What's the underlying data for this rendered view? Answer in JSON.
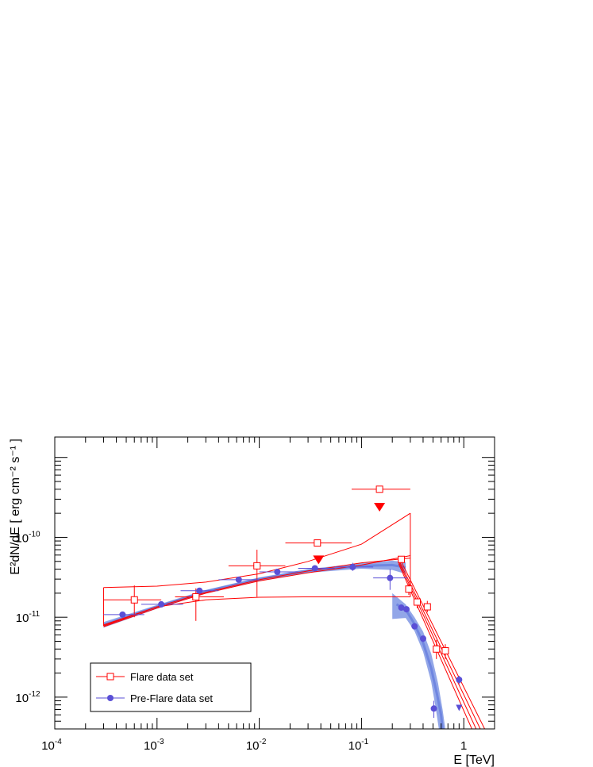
{
  "chart_data": {
    "type": "scatter",
    "title": "",
    "xlabel": "E [TeV]",
    "ylabel": "E²dN/dE [ erg cm⁻² s⁻¹ ]",
    "x_scale": "log",
    "y_scale": "log",
    "xlim": [
      0.0001,
      2.0
    ],
    "ylim": [
      4e-13,
      1.8e-09
    ],
    "x_ticks": [
      {
        "v": 0.0001,
        "base": "10",
        "exp": "-4"
      },
      {
        "v": 0.001,
        "base": "10",
        "exp": "-3"
      },
      {
        "v": 0.01,
        "base": "10",
        "exp": "-2"
      },
      {
        "v": 0.1,
        "base": "10",
        "exp": "-1"
      },
      {
        "v": 1,
        "base": "1",
        "exp": ""
      }
    ],
    "y_ticks": [
      {
        "v": 1e-12,
        "base": "10",
        "exp": "-12"
      },
      {
        "v": 1e-11,
        "base": "10",
        "exp": "-11"
      },
      {
        "v": 1e-10,
        "base": "10",
        "exp": "-10"
      }
    ],
    "grid": false,
    "legend_position": "bottom-left",
    "colors": {
      "flare": "#ff0000",
      "preflare": "#5a4fd6",
      "preflare_band": "#6d88e0",
      "preflare_curve": "#6f86e0"
    },
    "series": [
      {
        "name": "Flare data set",
        "marker": "open-square",
        "points": [
          {
            "x": 0.0006,
            "y": 1.65e-11,
            "xlo": 0.0003,
            "xhi": 0.0011,
            "ylo": 1e-11,
            "yhi": 2.5e-11
          },
          {
            "x": 0.0024,
            "y": 1.8e-11,
            "xlo": 0.0015,
            "xhi": 0.0045,
            "ylo": 9e-12,
            "yhi": 2.3e-11
          },
          {
            "x": 0.0095,
            "y": 4.4e-11,
            "xlo": 0.005,
            "xhi": 0.018,
            "ylo": 1.8e-11,
            "yhi": 7e-11
          },
          {
            "x": 0.037,
            "y": 8.5e-11,
            "xlo": 0.018,
            "xhi": 0.08,
            "ylo": null,
            "yhi": null
          },
          {
            "x": 0.15,
            "y": 4e-10,
            "xlo": 0.08,
            "xhi": 0.3,
            "ylo": null,
            "yhi": null
          },
          {
            "x": 0.245,
            "y": 5.3e-11,
            "xlo": null,
            "xhi": null,
            "ylo": 4.8e-11,
            "yhi": 5.8e-11
          },
          {
            "x": 0.29,
            "y": 2.25e-11,
            "xlo": null,
            "xhi": null,
            "ylo": 1.9e-11,
            "yhi": 2.6e-11
          },
          {
            "x": 0.35,
            "y": 1.55e-11,
            "xlo": null,
            "xhi": null,
            "ylo": 1.3e-11,
            "yhi": 1.8e-11
          },
          {
            "x": 0.44,
            "y": 1.35e-11,
            "xlo": null,
            "xhi": null,
            "ylo": 1.15e-11,
            "yhi": 1.6e-11
          },
          {
            "x": 0.54,
            "y": 4e-12,
            "xlo": null,
            "xhi": null,
            "ylo": 3e-12,
            "yhi": 5.2e-12
          },
          {
            "x": 0.66,
            "y": 3.8e-12,
            "xlo": null,
            "xhi": null,
            "ylo": 3e-12,
            "yhi": 4.6e-12
          }
        ],
        "upper_limits": [
          {
            "x": 0.038,
            "y": 4.6e-11
          },
          {
            "x": 0.15,
            "y": 2.1e-10
          }
        ]
      },
      {
        "name": "Pre-Flare data set",
        "marker": "filled-circle",
        "points": [
          {
            "x": 0.00046,
            "y": 1.08e-11,
            "xlo": 0.0003,
            "xhi": 0.00075,
            "ylo": null,
            "yhi": null
          },
          {
            "x": 0.0011,
            "y": 1.45e-11,
            "xlo": 0.0007,
            "xhi": 0.0018,
            "ylo": null,
            "yhi": null
          },
          {
            "x": 0.0026,
            "y": 2.15e-11,
            "xlo": 0.0017,
            "xhi": 0.004,
            "ylo": null,
            "yhi": null
          },
          {
            "x": 0.0063,
            "y": 2.95e-11,
            "xlo": 0.004,
            "xhi": 0.01,
            "ylo": null,
            "yhi": null
          },
          {
            "x": 0.015,
            "y": 3.7e-11,
            "xlo": 0.01,
            "xhi": 0.024,
            "ylo": null,
            "yhi": null
          },
          {
            "x": 0.035,
            "y": 4.1e-11,
            "xlo": 0.024,
            "xhi": 0.055,
            "ylo": null,
            "yhi": null
          },
          {
            "x": 0.082,
            "y": 4.25e-11,
            "xlo": 0.055,
            "xhi": 0.13,
            "ylo": 3.8e-11,
            "yhi": 4.8e-11
          },
          {
            "x": 0.19,
            "y": 3.1e-11,
            "xlo": 0.13,
            "xhi": 0.28,
            "ylo": 2.2e-11,
            "yhi": 4e-11
          },
          {
            "x": 0.245,
            "y": 1.32e-11,
            "xlo": null,
            "xhi": null,
            "ylo": 1.22e-11,
            "yhi": 1.42e-11
          },
          {
            "x": 0.275,
            "y": 1.26e-11,
            "xlo": null,
            "xhi": null,
            "ylo": 1.16e-11,
            "yhi": 1.36e-11
          },
          {
            "x": 0.33,
            "y": 7.7e-12,
            "xlo": null,
            "xhi": null,
            "ylo": 7.1e-12,
            "yhi": 8.3e-12
          },
          {
            "x": 0.4,
            "y": 5.4e-12,
            "xlo": null,
            "xhi": null,
            "ylo": 4.9e-12,
            "yhi": 5.9e-12
          },
          {
            "x": 0.51,
            "y": 7.2e-13,
            "xlo": null,
            "xhi": null,
            "ylo": 5.5e-13,
            "yhi": 9e-13
          },
          {
            "x": 0.9,
            "y": 1.65e-12,
            "xlo": null,
            "xhi": null,
            "ylo": 1.45e-12,
            "yhi": 1.85e-12
          }
        ],
        "upper_limits": [
          {
            "x": 0.9,
            "y": 7e-13
          }
        ]
      }
    ],
    "model_curves": {
      "flare_lower": [
        [
          0.0003,
          7.6e-12
        ],
        [
          0.001,
          1.3e-11
        ],
        [
          0.003,
          2e-11
        ],
        [
          0.01,
          2.85e-11
        ],
        [
          0.03,
          3.6e-11
        ],
        [
          0.1,
          4.5e-11
        ],
        [
          0.3,
          5.9e-11
        ]
      ],
      "flare_upper": [
        [
          0.0003,
          8e-12
        ],
        [
          0.001,
          1.35e-11
        ],
        [
          0.003,
          2.05e-11
        ],
        [
          0.01,
          2.95e-11
        ],
        [
          0.03,
          3.8e-11
        ],
        [
          0.1,
          4.8e-11
        ],
        [
          0.3,
          5.5e-11
        ]
      ],
      "flare_band_top": [
        [
          0.0003,
          2.35e-11
        ],
        [
          0.001,
          2.45e-11
        ],
        [
          0.003,
          2.75e-11
        ],
        [
          0.01,
          3.5e-11
        ],
        [
          0.03,
          5e-11
        ],
        [
          0.1,
          8.2e-11
        ],
        [
          0.3,
          2e-10
        ]
      ],
      "flare_band_bottom": [
        [
          0.0003,
          7.8e-12
        ],
        [
          0.001,
          1.35e-11
        ],
        [
          0.003,
          1.65e-11
        ],
        [
          0.01,
          1.78e-11
        ],
        [
          0.03,
          1.8e-11
        ],
        [
          0.1,
          1.8e-11
        ],
        [
          0.3,
          1.8e-11
        ]
      ],
      "flare_tev_lines": [
        [
          [
            0.23,
            5.8e-11
          ],
          [
            1.6,
            4e-13
          ]
        ],
        [
          [
            0.23,
            5.3e-11
          ],
          [
            1.45,
            4e-13
          ]
        ],
        [
          [
            0.23,
            5e-11
          ],
          [
            1.32,
            4e-13
          ]
        ],
        [
          [
            0.23,
            4.7e-11
          ],
          [
            1.2,
            4e-13
          ]
        ]
      ],
      "preflare_curve": [
        [
          0.0003,
          8e-12
        ],
        [
          0.001,
          1.35e-11
        ],
        [
          0.003,
          2.1e-11
        ],
        [
          0.01,
          3e-11
        ],
        [
          0.03,
          3.8e-11
        ],
        [
          0.1,
          4.4e-11
        ],
        [
          0.2,
          4.5e-11
        ],
        [
          0.27,
          4.2e-11
        ]
      ],
      "preflare_band_top": [
        [
          0.0003,
          8.7e-12
        ],
        [
          0.001,
          1.42e-11
        ],
        [
          0.003,
          2.2e-11
        ],
        [
          0.01,
          3.15e-11
        ],
        [
          0.03,
          4e-11
        ],
        [
          0.1,
          4.75e-11
        ],
        [
          0.2,
          5.1e-11
        ],
        [
          0.27,
          4.9e-11
        ]
      ],
      "preflare_band_bottom": [
        [
          0.0003,
          7.4e-12
        ],
        [
          0.001,
          1.28e-11
        ],
        [
          0.003,
          2e-11
        ],
        [
          0.01,
          2.85e-11
        ],
        [
          0.03,
          3.6e-11
        ],
        [
          0.1,
          4.05e-11
        ],
        [
          0.2,
          3.9e-11
        ],
        [
          0.27,
          3.5e-11
        ]
      ],
      "preflare_tev_curve": [
        [
          0.22,
          1.45e-11
        ],
        [
          0.27,
          1.25e-11
        ],
        [
          0.33,
          8.2e-12
        ],
        [
          0.4,
          4.8e-12
        ],
        [
          0.48,
          2.3e-12
        ],
        [
          0.55,
          1.05e-12
        ],
        [
          0.6,
          6e-13
        ],
        [
          0.62,
          4e-13
        ]
      ],
      "preflare_tev_band_top": [
        [
          0.2,
          2e-11
        ],
        [
          0.27,
          1.45e-11
        ],
        [
          0.33,
          1e-11
        ],
        [
          0.4,
          6.6e-12
        ],
        [
          0.48,
          3.5e-12
        ],
        [
          0.56,
          1.5e-12
        ],
        [
          0.62,
          7e-13
        ],
        [
          0.66,
          4e-13
        ]
      ],
      "preflare_tev_band_bottom": [
        [
          0.2,
          9.5e-12
        ],
        [
          0.27,
          9.8e-12
        ],
        [
          0.33,
          6.7e-12
        ],
        [
          0.4,
          3.7e-12
        ],
        [
          0.48,
          1.55e-12
        ],
        [
          0.53,
          7.5e-13
        ],
        [
          0.57,
          4e-13
        ]
      ]
    }
  }
}
